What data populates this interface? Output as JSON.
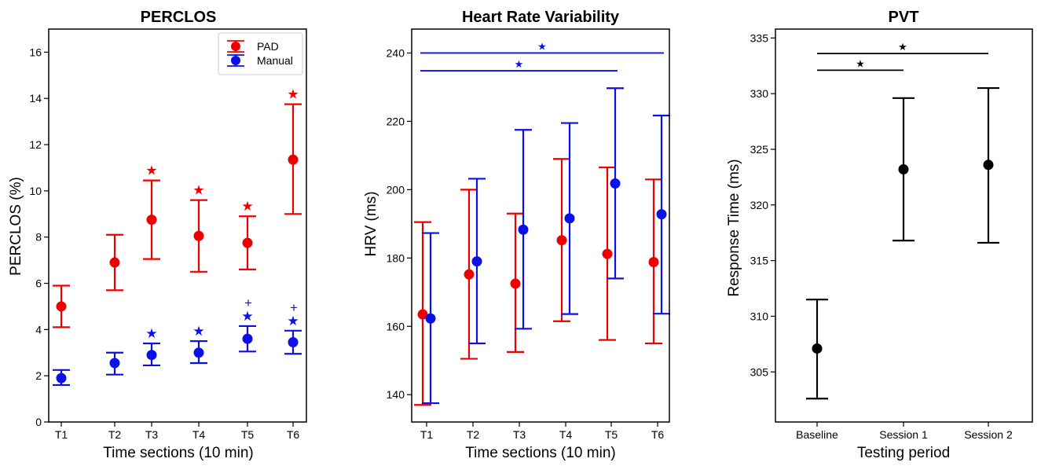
{
  "colors": {
    "pad": "#ee0000",
    "manual": "#0a10e6",
    "pvt": "#000000"
  },
  "chart_data": [
    {
      "type": "scatter",
      "variant": "errorbar",
      "title": "PERCLOS",
      "xlabel": "Time sections (10 min)",
      "ylabel": "PERCLOS (%)",
      "categories": [
        "T1",
        "T2",
        "T3",
        "T4",
        "T5",
        "T6"
      ],
      "ylim": [
        0,
        17
      ],
      "yticks": [
        "0",
        "2",
        "4",
        "6",
        "8",
        "10",
        "12",
        "14",
        "16"
      ],
      "legend": {
        "position": "top-right",
        "entries": [
          "PAD",
          "Manual"
        ]
      },
      "series": [
        {
          "name": "PAD",
          "color": "pad",
          "values": [
            5.0,
            6.9,
            8.75,
            8.05,
            7.75,
            11.35
          ],
          "lower": [
            4.1,
            5.7,
            7.05,
            6.5,
            6.6,
            9.0
          ],
          "upper": [
            5.9,
            8.1,
            10.45,
            9.6,
            8.9,
            13.75
          ],
          "markers": [
            "",
            "",
            "★",
            "★",
            "★",
            "★"
          ]
        },
        {
          "name": "Manual",
          "color": "manual",
          "values": [
            1.9,
            2.55,
            2.9,
            3.0,
            3.6,
            3.45
          ],
          "lower": [
            1.6,
            2.05,
            2.45,
            2.55,
            3.05,
            2.95
          ],
          "upper": [
            2.25,
            3.0,
            3.4,
            3.5,
            4.15,
            3.95
          ],
          "markers": [
            "",
            "",
            "★",
            "★",
            "★",
            "★"
          ],
          "extra_markers": [
            "",
            "",
            "",
            "",
            "+",
            "+"
          ]
        }
      ]
    },
    {
      "type": "scatter",
      "variant": "errorbar",
      "title": "Heart Rate Variability",
      "xlabel": "Time sections (10 min)",
      "ylabel": "HRV (ms)",
      "categories": [
        "T1",
        "T2",
        "T3",
        "T4",
        "T5",
        "T6"
      ],
      "ylim": [
        132,
        247
      ],
      "yticks": [
        "140",
        "160",
        "180",
        "200",
        "220",
        "240"
      ],
      "series": [
        {
          "name": "PAD",
          "color": "pad",
          "values": [
            163.5,
            175.2,
            172.5,
            185.2,
            181.2,
            178.8
          ],
          "lower": [
            137.0,
            150.5,
            152.5,
            161.5,
            156.0,
            155.0
          ],
          "upper": [
            190.5,
            200.0,
            193.0,
            209.0,
            206.5,
            203.0
          ]
        },
        {
          "name": "Manual",
          "color": "manual",
          "values": [
            162.3,
            179.0,
            188.3,
            191.6,
            201.8,
            192.8
          ],
          "lower": [
            137.5,
            155.0,
            159.3,
            163.6,
            174.0,
            163.7
          ],
          "upper": [
            187.3,
            203.2,
            217.5,
            219.5,
            229.7,
            221.7
          ]
        }
      ],
      "significance": [
        {
          "from": "T1",
          "to": "T6",
          "y": 240.0,
          "label": "★"
        },
        {
          "from": "T1",
          "to": "T5",
          "y": 234.8,
          "label": "★"
        }
      ]
    },
    {
      "type": "scatter",
      "variant": "errorbar",
      "title": "PVT",
      "xlabel": "Testing period",
      "ylabel": "Response Time (ms)",
      "categories": [
        "Baseline",
        "Session 1",
        "Session 2"
      ],
      "ylim": [
        300.5,
        335.8
      ],
      "yticks": [
        "305",
        "310",
        "315",
        "320",
        "325",
        "330",
        "335"
      ],
      "series": [
        {
          "name": "PVT",
          "color": "pvt",
          "values": [
            307.1,
            323.2,
            323.6
          ],
          "lower": [
            302.6,
            316.8,
            316.6
          ],
          "upper": [
            311.5,
            329.6,
            330.5
          ]
        }
      ],
      "significance": [
        {
          "from": "Baseline",
          "to": "Session 2",
          "y": 333.6,
          "label": "★"
        },
        {
          "from": "Baseline",
          "to": "Session 1",
          "y": 332.1,
          "label": "★"
        }
      ]
    }
  ]
}
